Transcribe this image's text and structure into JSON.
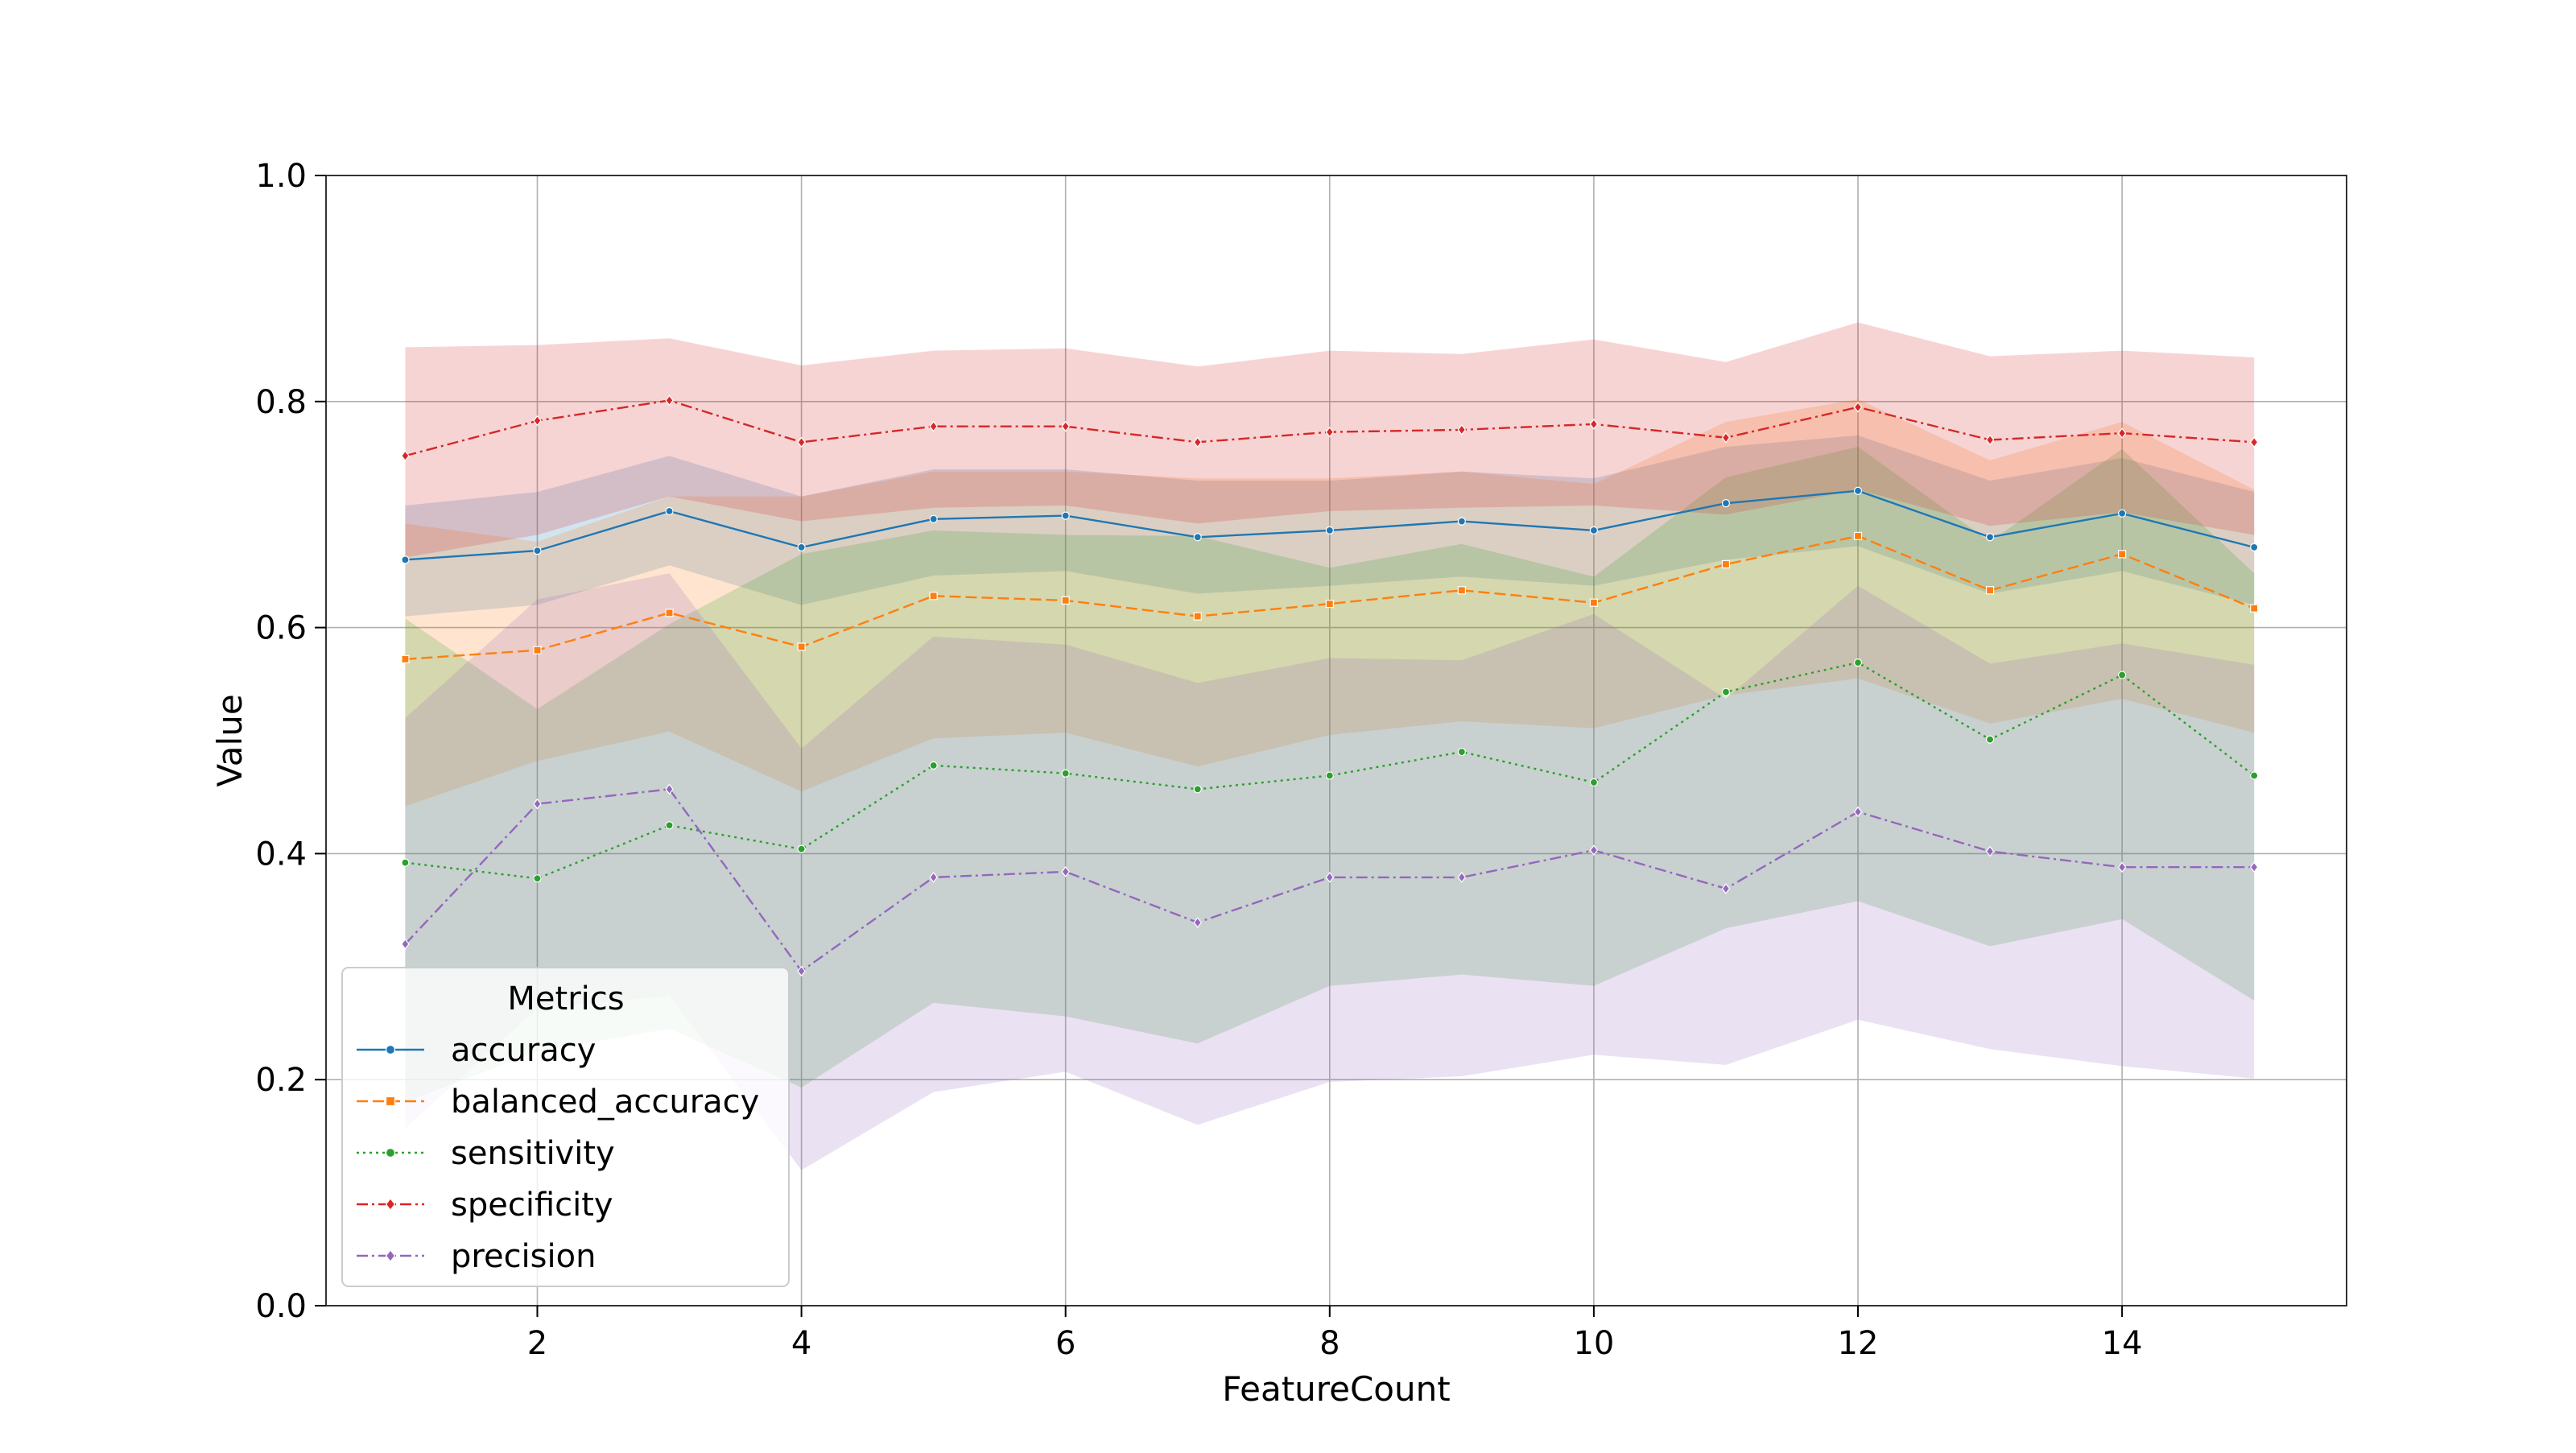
{
  "chart_data": {
    "type": "line",
    "xlabel": "FeatureCount",
    "ylabel": "Value",
    "xlim": [
      0.4,
      15.7
    ],
    "ylim": [
      0.0,
      1.0
    ],
    "x_ticks": [
      2,
      4,
      6,
      8,
      10,
      12,
      14
    ],
    "x_tick_labels": [
      "2",
      "4",
      "6",
      "8",
      "10",
      "12",
      "14"
    ],
    "y_ticks": [
      0.0,
      0.2,
      0.4,
      0.6,
      0.8,
      1.0
    ],
    "y_tick_labels": [
      "0.0",
      "0.2",
      "0.4",
      "0.6",
      "0.8",
      "1.0"
    ],
    "grid": true,
    "legend": {
      "title": "Metrics",
      "placement": "lower-left"
    },
    "x": [
      1,
      2,
      3,
      4,
      5,
      6,
      7,
      8,
      9,
      10,
      11,
      12,
      13,
      14,
      15
    ],
    "series": [
      {
        "name": "accuracy",
        "color": "#1f77b4",
        "dash": "solid",
        "marker": "circle",
        "values": [
          0.66,
          0.668,
          0.703,
          0.671,
          0.696,
          0.699,
          0.68,
          0.686,
          0.694,
          0.686,
          0.71,
          0.721,
          0.68,
          0.701,
          0.671
        ],
        "lower": [
          0.61,
          0.62,
          0.655,
          0.62,
          0.646,
          0.65,
          0.63,
          0.637,
          0.645,
          0.637,
          0.66,
          0.672,
          0.63,
          0.65,
          0.62
        ],
        "upper": [
          0.708,
          0.72,
          0.752,
          0.716,
          0.74,
          0.74,
          0.73,
          0.73,
          0.738,
          0.732,
          0.76,
          0.77,
          0.73,
          0.75,
          0.72
        ]
      },
      {
        "name": "balanced_accuracy",
        "color": "#ff7f0e",
        "dash": "dashed",
        "marker": "square",
        "values": [
          0.572,
          0.58,
          0.613,
          0.583,
          0.628,
          0.624,
          0.61,
          0.621,
          0.633,
          0.622,
          0.656,
          0.681,
          0.633,
          0.665,
          0.617
        ],
        "lower": [
          0.442,
          0.482,
          0.508,
          0.455,
          0.502,
          0.507,
          0.477,
          0.505,
          0.517,
          0.511,
          0.54,
          0.555,
          0.515,
          0.537,
          0.507
        ],
        "upper": [
          0.692,
          0.676,
          0.716,
          0.716,
          0.738,
          0.738,
          0.732,
          0.732,
          0.738,
          0.727,
          0.782,
          0.802,
          0.748,
          0.782,
          0.722
        ]
      },
      {
        "name": "sensitivity",
        "color": "#2ca02c",
        "dash": "dotted",
        "marker": "circle",
        "values": [
          0.392,
          0.378,
          0.425,
          0.404,
          0.478,
          0.471,
          0.457,
          0.469,
          0.49,
          0.463,
          0.543,
          0.569,
          0.501,
          0.558,
          0.469
        ],
        "lower": [
          0.18,
          0.225,
          0.245,
          0.193,
          0.268,
          0.256,
          0.232,
          0.283,
          0.293,
          0.283,
          0.334,
          0.358,
          0.318,
          0.342,
          0.27
        ],
        "upper": [
          0.608,
          0.528,
          0.603,
          0.665,
          0.686,
          0.682,
          0.681,
          0.653,
          0.674,
          0.645,
          0.733,
          0.76,
          0.676,
          0.758,
          0.648
        ]
      },
      {
        "name": "specificity",
        "color": "#d62728",
        "dash": "dashdot",
        "marker": "diamond",
        "values": [
          0.752,
          0.783,
          0.801,
          0.764,
          0.778,
          0.778,
          0.764,
          0.773,
          0.775,
          0.78,
          0.768,
          0.795,
          0.766,
          0.772,
          0.764
        ],
        "lower": [
          0.662,
          0.682,
          0.716,
          0.694,
          0.706,
          0.708,
          0.692,
          0.703,
          0.706,
          0.708,
          0.7,
          0.722,
          0.69,
          0.702,
          0.682
        ],
        "upper": [
          0.848,
          0.85,
          0.856,
          0.832,
          0.845,
          0.847,
          0.831,
          0.845,
          0.842,
          0.855,
          0.835,
          0.87,
          0.84,
          0.845,
          0.839
        ]
      },
      {
        "name": "precision",
        "color": "#9467bd",
        "dash": "dashdot",
        "marker": "diamond",
        "values": [
          0.32,
          0.444,
          0.457,
          0.296,
          0.379,
          0.384,
          0.339,
          0.379,
          0.379,
          0.403,
          0.369,
          0.437,
          0.402,
          0.388,
          0.388
        ],
        "lower": [
          0.157,
          0.263,
          0.274,
          0.12,
          0.189,
          0.207,
          0.16,
          0.198,
          0.203,
          0.222,
          0.213,
          0.253,
          0.227,
          0.212,
          0.201
        ],
        "upper": [
          0.52,
          0.625,
          0.648,
          0.493,
          0.592,
          0.585,
          0.551,
          0.573,
          0.571,
          0.612,
          0.537,
          0.637,
          0.568,
          0.586,
          0.567
        ]
      }
    ]
  }
}
